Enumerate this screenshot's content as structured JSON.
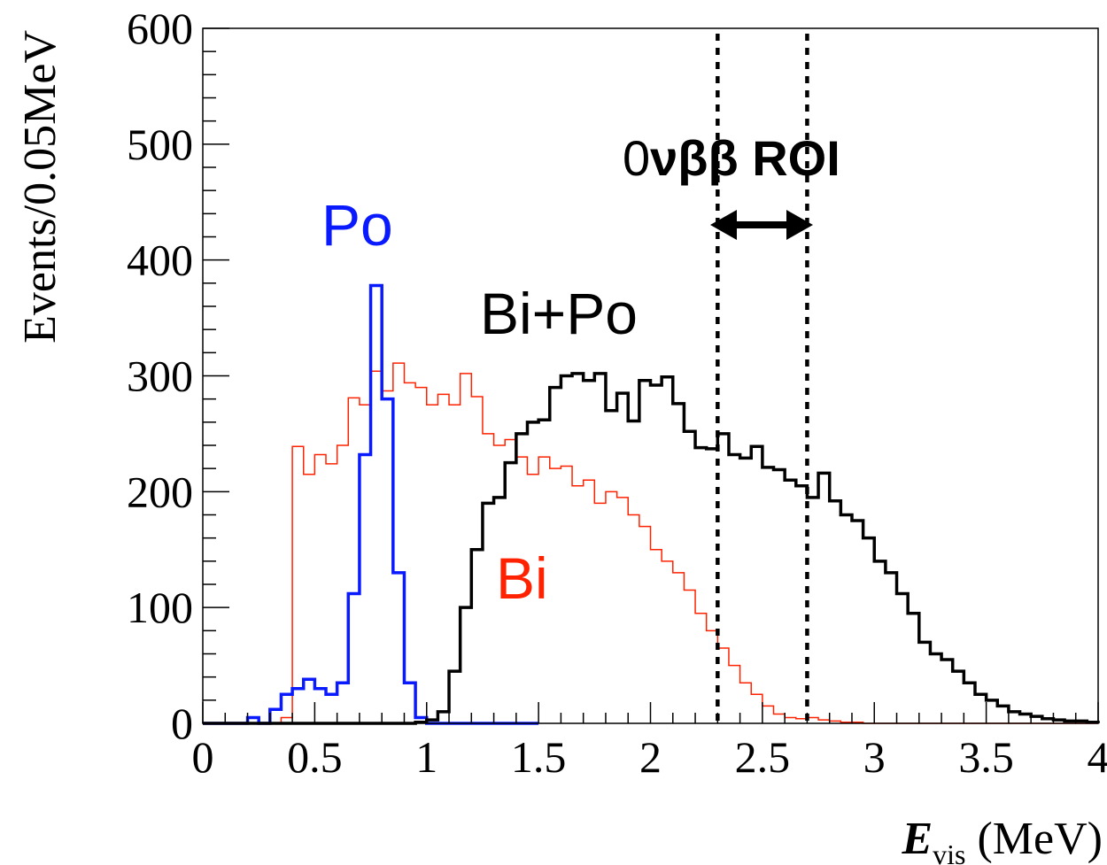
{
  "chart_data": {
    "type": "line",
    "title": "",
    "xlabel": {
      "symbol": "E",
      "subscript": "vis",
      "unit": " (MeV)"
    },
    "ylabel": "Events/0.05MeV",
    "xlim": [
      0,
      4
    ],
    "ylim": [
      0,
      600
    ],
    "x_ticks": [
      "0",
      "0.5",
      "1",
      "1.5",
      "2",
      "2.5",
      "3",
      "3.5",
      "4"
    ],
    "x_tick_values": [
      0,
      0.5,
      1,
      1.5,
      2,
      2.5,
      3,
      3.5,
      4
    ],
    "y_ticks": [
      "0",
      "100",
      "200",
      "300",
      "400",
      "500",
      "600"
    ],
    "y_tick_values": [
      0,
      100,
      200,
      300,
      400,
      500,
      600
    ],
    "bin_width": 0.05,
    "series": [
      {
        "name": "Bi",
        "color": "#ff2200",
        "x_start": 0,
        "values": [
          0,
          0,
          0,
          0,
          0,
          0,
          0,
          5,
          239,
          215,
          232,
          224,
          240,
          281,
          275,
          304,
          287,
          311,
          294,
          290,
          275,
          284,
          275,
          302,
          282,
          250,
          240,
          245,
          230,
          215,
          230,
          220,
          222,
          205,
          210,
          190,
          200,
          195,
          180,
          170,
          150,
          140,
          130,
          115,
          95,
          80,
          65,
          50,
          35,
          25,
          15,
          8,
          5,
          4,
          5,
          3,
          2,
          1,
          1,
          0,
          0,
          0,
          0,
          0,
          0,
          0,
          0,
          0,
          0,
          0,
          0,
          0,
          0,
          0,
          0,
          0,
          0,
          0,
          0,
          0
        ]
      },
      {
        "name": "Po",
        "color": "#0a1aff",
        "x_start": 0,
        "values": [
          0,
          0,
          0,
          0,
          5,
          0,
          12,
          25,
          30,
          38,
          30,
          25,
          35,
          112,
          232,
          378,
          280,
          130,
          35,
          5,
          0,
          0,
          0,
          0,
          0,
          0,
          0,
          0,
          0,
          0
        ]
      },
      {
        "name": "Bi+Po",
        "color": "#000000",
        "x_start": 0,
        "values": [
          0,
          0,
          0,
          0,
          0,
          0,
          0,
          0,
          0,
          0,
          0,
          0,
          0,
          0,
          0,
          0,
          0,
          0,
          0,
          1,
          3,
          10,
          45,
          100,
          150,
          190,
          195,
          225,
          250,
          260,
          262,
          290,
          300,
          302,
          296,
          302,
          270,
          285,
          261,
          296,
          292,
          299,
          276,
          252,
          238,
          237,
          250,
          232,
          229,
          239,
          221,
          219,
          210,
          205,
          195,
          216,
          192,
          180,
          175,
          160,
          140,
          130,
          112,
          95,
          70,
          60,
          55,
          45,
          35,
          25,
          20,
          15,
          10,
          8,
          6,
          4,
          3,
          2,
          2,
          1
        ]
      }
    ],
    "annotations": [
      {
        "text": "Po",
        "color": "#0a1aff"
      },
      {
        "text": "Bi+Po",
        "color": "#000000"
      },
      {
        "text": "Bi",
        "color": "#ff2200"
      },
      {
        "text_prefix": "0",
        "text_bold": "νββ ROI",
        "color": "#000000"
      }
    ],
    "roi_lines": [
      2.3,
      2.7
    ],
    "grid": false,
    "legend": "none"
  }
}
